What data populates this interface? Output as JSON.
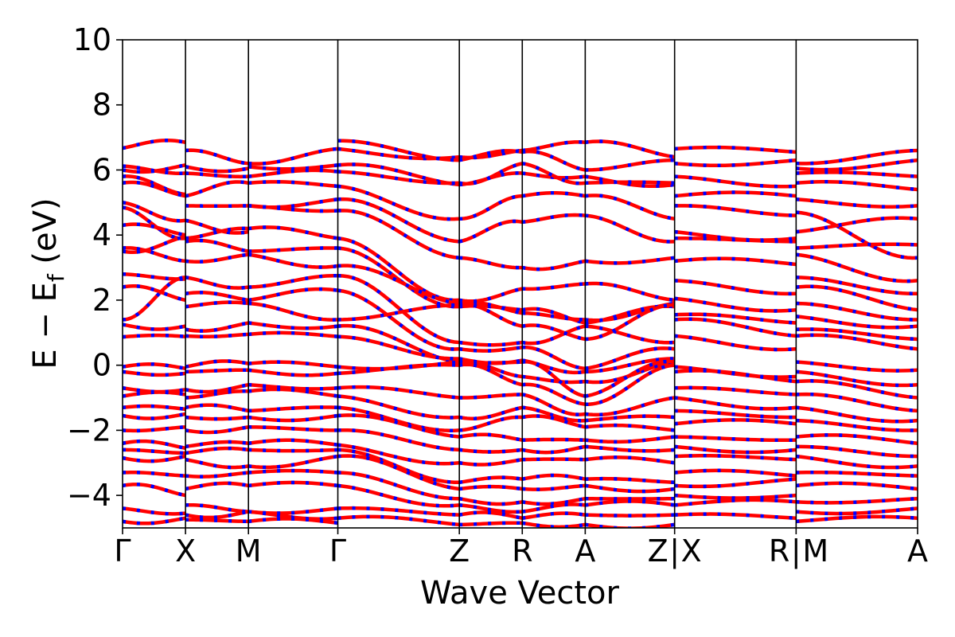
{
  "chart_data": {
    "type": "line",
    "title": "",
    "xlabel": "Wave Vector",
    "ylabel_parts": {
      "main": "E − E",
      "sub": "f",
      "units": " (eV)"
    },
    "ylim": [
      -5,
      10
    ],
    "yticks": [
      -4,
      -2,
      0,
      2,
      4,
      6,
      8,
      10
    ],
    "ytick_labels": [
      "−4",
      "−2",
      "0",
      "2",
      "4",
      "6",
      "8",
      "10"
    ],
    "grid": false,
    "legend": "none",
    "path_segment_lengths": [
      1,
      1,
      1.42,
      1.93,
      1,
      1,
      1.42,
      1.93,
      1.93
    ],
    "kpoint_labels": [
      "Γ",
      "X",
      "M",
      "Γ",
      "Z",
      "R",
      "A",
      "Z | X",
      "R | M",
      "A"
    ],
    "kpoint_label_parts": [
      [
        "Γ"
      ],
      [
        "X"
      ],
      [
        "M"
      ],
      [
        "Γ"
      ],
      [
        "Z"
      ],
      [
        "R"
      ],
      [
        "A"
      ],
      [
        "Z",
        "X"
      ],
      [
        "R",
        "M"
      ],
      [
        "A"
      ]
    ],
    "break_separator": "|",
    "series": [
      {
        "style": "solid",
        "color": "#ff0000",
        "width": 4.5
      },
      {
        "style": "dashed",
        "color": "#0000ff",
        "width": 4.5
      }
    ],
    "segments": [
      {
        "from": "Γ",
        "to": "X",
        "bands": [
          [
            6.67,
            6.85
          ],
          [
            6.12,
            5.9
          ],
          [
            6.0,
            6.15
          ],
          [
            5.8,
            5.25
          ],
          [
            5.6,
            5.2
          ],
          [
            5.0,
            4.45
          ],
          [
            4.85,
            3.9
          ],
          [
            4.3,
            4.0
          ],
          [
            3.6,
            3.2
          ],
          [
            3.5,
            3.95
          ],
          [
            2.8,
            2.65
          ],
          [
            2.4,
            2.0
          ],
          [
            1.4,
            2.7
          ],
          [
            1.25,
            1.2
          ],
          [
            0.87,
            0.88
          ],
          [
            -0.05,
            -0.1
          ],
          [
            -0.2,
            -0.25
          ],
          [
            -0.7,
            -0.75
          ],
          [
            -0.95,
            -0.9
          ],
          [
            -1.3,
            -1.35
          ],
          [
            -1.55,
            -1.5
          ],
          [
            -2.0,
            -1.9
          ],
          [
            -2.4,
            -2.55
          ],
          [
            -2.6,
            -2.7
          ],
          [
            -2.85,
            -2.8
          ],
          [
            -3.3,
            -3.4
          ],
          [
            -3.7,
            -4.0
          ],
          [
            -4.4,
            -4.55
          ],
          [
            -4.8,
            -4.7
          ]
        ]
      },
      {
        "from": "X",
        "to": "M",
        "bands": [
          [
            6.6,
            6.2
          ],
          [
            6.1,
            6.05
          ],
          [
            5.9,
            5.8
          ],
          [
            5.2,
            5.6
          ],
          [
            4.9,
            4.9
          ],
          [
            4.45,
            4.1
          ],
          [
            3.9,
            4.2
          ],
          [
            3.8,
            3.5
          ],
          [
            3.2,
            3.4
          ],
          [
            2.7,
            2.4
          ],
          [
            2.2,
            2.0
          ],
          [
            1.8,
            1.9
          ],
          [
            1.1,
            1.3
          ],
          [
            0.9,
            0.95
          ],
          [
            -0.05,
            0.05
          ],
          [
            -0.2,
            -0.15
          ],
          [
            -0.75,
            -0.6
          ],
          [
            -1.0,
            -0.8
          ],
          [
            -1.3,
            -1.4
          ],
          [
            -1.6,
            -1.6
          ],
          [
            -2.0,
            -1.9
          ],
          [
            -2.5,
            -2.4
          ],
          [
            -2.7,
            -2.6
          ],
          [
            -2.9,
            -3.1
          ],
          [
            -3.4,
            -3.3
          ],
          [
            -3.8,
            -3.7
          ],
          [
            -4.3,
            -4.5
          ],
          [
            -4.6,
            -4.5
          ],
          [
            -4.75,
            -4.8
          ]
        ]
      },
      {
        "from": "M",
        "to": "Γ",
        "bands": [
          [
            6.2,
            6.65
          ],
          [
            6.1,
            6.15
          ],
          [
            5.8,
            5.95
          ],
          [
            5.6,
            5.5
          ],
          [
            4.9,
            5.1
          ],
          [
            4.9,
            4.75
          ],
          [
            4.2,
            3.9
          ],
          [
            3.5,
            3.6
          ],
          [
            3.4,
            3.05
          ],
          [
            2.4,
            2.75
          ],
          [
            2.0,
            2.3
          ],
          [
            1.9,
            1.4
          ],
          [
            1.3,
            1.2
          ],
          [
            0.95,
            0.88
          ],
          [
            0.05,
            -0.05
          ],
          [
            -0.15,
            -0.25
          ],
          [
            -0.6,
            -0.7
          ],
          [
            -0.8,
            -0.95
          ],
          [
            -1.4,
            -1.3
          ],
          [
            -1.6,
            -1.55
          ],
          [
            -1.9,
            -2.0
          ],
          [
            -2.4,
            -2.45
          ],
          [
            -2.6,
            -2.6
          ],
          [
            -3.1,
            -2.8
          ],
          [
            -3.3,
            -3.3
          ],
          [
            -3.7,
            -3.7
          ],
          [
            -4.5,
            -4.4
          ],
          [
            -4.5,
            -4.7
          ],
          [
            -4.8,
            -4.85
          ]
        ]
      },
      {
        "from": "Γ",
        "to": "Z",
        "bands": [
          [
            6.65,
            6.4
          ],
          [
            6.9,
            6.3
          ],
          [
            6.15,
            5.55
          ],
          [
            5.95,
            5.6
          ],
          [
            5.5,
            4.5
          ],
          [
            5.1,
            3.8
          ],
          [
            4.75,
            3.3
          ],
          [
            3.9,
            2.0
          ],
          [
            3.6,
            1.8
          ],
          [
            3.05,
            1.9
          ],
          [
            2.75,
            0.7
          ],
          [
            2.3,
            0.5
          ],
          [
            1.4,
            1.85
          ],
          [
            1.2,
            0.1
          ],
          [
            0.88,
            0.2
          ],
          [
            -0.05,
            0.1
          ],
          [
            -0.25,
            0.0
          ],
          [
            -0.7,
            -1.0
          ],
          [
            -0.95,
            -1.6
          ],
          [
            -1.3,
            -2.0
          ],
          [
            -1.55,
            -2.2
          ],
          [
            -2.0,
            -2.6
          ],
          [
            -2.45,
            -3.0
          ],
          [
            -2.6,
            -3.6
          ],
          [
            -2.8,
            -3.8
          ],
          [
            -3.3,
            -4.1
          ],
          [
            -3.7,
            -4.3
          ],
          [
            -4.4,
            -4.6
          ],
          [
            -4.7,
            -4.9
          ]
        ]
      },
      {
        "from": "Z",
        "to": "R",
        "bands": [
          [
            6.4,
            6.6
          ],
          [
            6.3,
            6.55
          ],
          [
            5.55,
            5.9
          ],
          [
            5.6,
            6.2
          ],
          [
            4.5,
            5.2
          ],
          [
            3.8,
            4.4
          ],
          [
            3.3,
            3.0
          ],
          [
            2.0,
            2.35
          ],
          [
            1.8,
            1.7
          ],
          [
            1.9,
            1.6
          ],
          [
            0.7,
            0.7
          ],
          [
            0.5,
            0.55
          ],
          [
            1.85,
            1.2
          ],
          [
            0.1,
            -0.35
          ],
          [
            0.2,
            0.15
          ],
          [
            0.1,
            0.1
          ],
          [
            0.0,
            -0.6
          ],
          [
            -1.0,
            -0.9
          ],
          [
            -1.6,
            -1.3
          ],
          [
            -2.0,
            -1.6
          ],
          [
            -2.2,
            -2.3
          ],
          [
            -2.6,
            -2.6
          ],
          [
            -3.0,
            -2.9
          ],
          [
            -3.6,
            -3.5
          ],
          [
            -3.8,
            -3.8
          ],
          [
            -4.1,
            -4.2
          ],
          [
            -4.3,
            -4.5
          ],
          [
            -4.6,
            -4.7
          ],
          [
            -4.9,
            -4.85
          ]
        ]
      },
      {
        "from": "R",
        "to": "A",
        "bands": [
          [
            6.6,
            6.85
          ],
          [
            6.55,
            6.0
          ],
          [
            5.9,
            5.8
          ],
          [
            6.2,
            5.6
          ],
          [
            5.2,
            5.2
          ],
          [
            4.4,
            4.6
          ],
          [
            3.0,
            3.2
          ],
          [
            2.35,
            2.5
          ],
          [
            1.7,
            1.3
          ],
          [
            1.6,
            1.4
          ],
          [
            0.7,
            1.2
          ],
          [
            0.55,
            -0.1
          ],
          [
            1.2,
            0.8
          ],
          [
            -0.35,
            -0.5
          ],
          [
            0.15,
            -0.2
          ],
          [
            0.1,
            -0.95
          ],
          [
            -0.6,
            -1.2
          ],
          [
            -0.9,
            -1.5
          ],
          [
            -1.3,
            -1.7
          ],
          [
            -1.6,
            -1.9
          ],
          [
            -2.3,
            -2.3
          ],
          [
            -2.6,
            -2.5
          ],
          [
            -2.9,
            -2.9
          ],
          [
            -3.5,
            -3.5
          ],
          [
            -3.8,
            -3.7
          ],
          [
            -4.2,
            -4.1
          ],
          [
            -4.5,
            -4.3
          ],
          [
            -4.7,
            -4.6
          ],
          [
            -4.85,
            -4.9
          ]
        ]
      },
      {
        "from": "A",
        "to": "Z",
        "bands": [
          [
            6.85,
            6.4
          ],
          [
            6.0,
            6.3
          ],
          [
            5.8,
            5.55
          ],
          [
            5.6,
            5.6
          ],
          [
            5.2,
            4.5
          ],
          [
            4.6,
            3.8
          ],
          [
            3.2,
            3.3
          ],
          [
            2.5,
            2.0
          ],
          [
            1.3,
            1.8
          ],
          [
            1.4,
            1.9
          ],
          [
            1.2,
            0.7
          ],
          [
            -0.1,
            0.5
          ],
          [
            0.8,
            1.85
          ],
          [
            -0.5,
            0.1
          ],
          [
            -0.2,
            0.2
          ],
          [
            -0.95,
            0.1
          ],
          [
            -1.2,
            0.0
          ],
          [
            -1.5,
            -1.0
          ],
          [
            -1.7,
            -1.6
          ],
          [
            -1.9,
            -2.0
          ],
          [
            -2.3,
            -2.2
          ],
          [
            -2.5,
            -2.6
          ],
          [
            -2.9,
            -3.0
          ],
          [
            -3.5,
            -3.6
          ],
          [
            -3.7,
            -3.8
          ],
          [
            -4.1,
            -4.1
          ],
          [
            -4.3,
            -4.3
          ],
          [
            -4.6,
            -4.6
          ],
          [
            -4.9,
            -4.9
          ]
        ]
      },
      {
        "from": "X",
        "to": "R",
        "bands": [
          [
            6.65,
            6.55
          ],
          [
            6.2,
            6.3
          ],
          [
            5.8,
            5.5
          ],
          [
            5.2,
            5.2
          ],
          [
            4.9,
            4.6
          ],
          [
            4.1,
            3.9
          ],
          [
            3.9,
            3.8
          ],
          [
            3.2,
            3.1
          ],
          [
            2.6,
            2.2
          ],
          [
            2.05,
            1.7
          ],
          [
            1.55,
            1.3
          ],
          [
            1.4,
            0.9
          ],
          [
            0.9,
            0.5
          ],
          [
            -0.05,
            -0.35
          ],
          [
            -0.2,
            -0.5
          ],
          [
            -0.7,
            -0.9
          ],
          [
            -1.0,
            -1.3
          ],
          [
            -1.4,
            -1.6
          ],
          [
            -1.8,
            -1.8
          ],
          [
            -2.2,
            -2.3
          ],
          [
            -2.5,
            -2.6
          ],
          [
            -2.8,
            -2.9
          ],
          [
            -3.3,
            -3.4
          ],
          [
            -3.7,
            -3.5
          ],
          [
            -4.0,
            -4.0
          ],
          [
            -4.3,
            -4.2
          ],
          [
            -4.6,
            -4.7
          ]
        ]
      },
      {
        "from": "M",
        "to": "A",
        "bands": [
          [
            6.2,
            6.6
          ],
          [
            6.05,
            6.3
          ],
          [
            5.9,
            5.8
          ],
          [
            5.6,
            5.4
          ],
          [
            5.1,
            4.9
          ],
          [
            4.7,
            3.3
          ],
          [
            4.1,
            4.5
          ],
          [
            3.6,
            3.7
          ],
          [
            3.4,
            2.6
          ],
          [
            2.7,
            2.2
          ],
          [
            2.4,
            1.7
          ],
          [
            1.9,
            1.4
          ],
          [
            1.5,
            1.2
          ],
          [
            1.1,
            0.8
          ],
          [
            0.9,
            0.5
          ],
          [
            0.1,
            -0.15
          ],
          [
            -0.2,
            -0.6
          ],
          [
            -0.5,
            -1.0
          ],
          [
            -0.9,
            -1.4
          ],
          [
            -1.3,
            -1.7
          ],
          [
            -1.7,
            -2.0
          ],
          [
            -2.2,
            -2.4
          ],
          [
            -2.5,
            -2.8
          ],
          [
            -2.8,
            -3.1
          ],
          [
            -3.3,
            -3.4
          ],
          [
            -3.7,
            -3.8
          ],
          [
            -4.2,
            -4.1
          ],
          [
            -4.5,
            -4.4
          ],
          [
            -4.8,
            -4.7
          ]
        ]
      }
    ]
  }
}
